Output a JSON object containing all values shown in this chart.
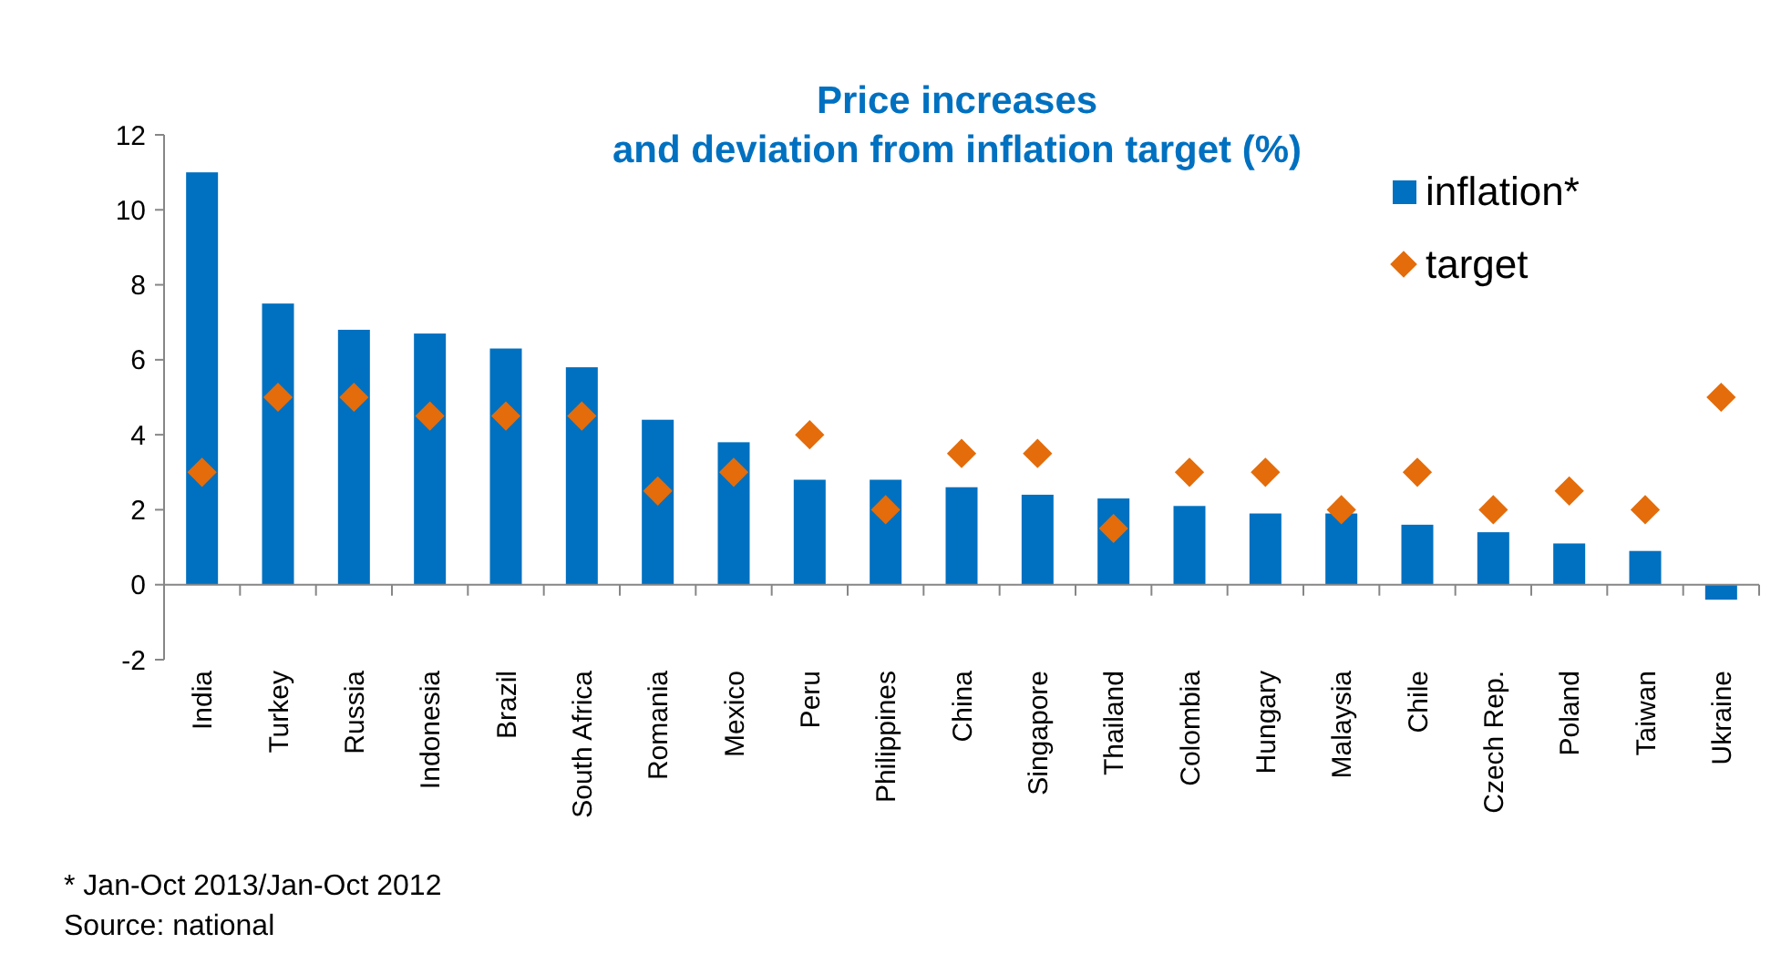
{
  "chart_data": {
    "type": "bar",
    "title": "Price increases\nand deviation from inflation target (%)",
    "categories": [
      "India",
      "Turkey",
      "Russia",
      "Indonesia",
      "Brazil",
      "South Africa",
      "Romania",
      "Mexico",
      "Peru",
      "Philippines",
      "China",
      "Singapore",
      "Thailand",
      "Colombia",
      "Hungary",
      "Malaysia",
      "Chile",
      "Czech Rep.",
      "Poland",
      "Taiwan",
      "Ukraine"
    ],
    "series": [
      {
        "name": "inflation*",
        "color": "#0070c0",
        "values": [
          11.0,
          7.5,
          6.8,
          6.7,
          6.3,
          5.8,
          4.4,
          3.8,
          2.8,
          2.8,
          2.6,
          2.4,
          2.3,
          2.1,
          1.9,
          1.9,
          1.6,
          1.4,
          1.1,
          0.9,
          -0.4
        ]
      },
      {
        "name": "target",
        "type": "scatter",
        "color": "#e46c0a",
        "values": [
          3,
          5,
          5,
          4.5,
          4.5,
          4.5,
          2.5,
          3,
          4,
          2,
          3.5,
          3.5,
          1.5,
          3,
          3,
          2,
          3,
          2,
          2.5,
          2,
          5
        ]
      }
    ],
    "marker": "diamond",
    "ylim": [
      -2,
      12
    ],
    "yticks": [
      -2,
      0,
      2,
      4,
      6,
      8,
      10,
      12
    ],
    "legend": "top right",
    "annotations": [
      "* Jan-Oct 2013/Jan-Oct 2012",
      "Source: national"
    ]
  }
}
